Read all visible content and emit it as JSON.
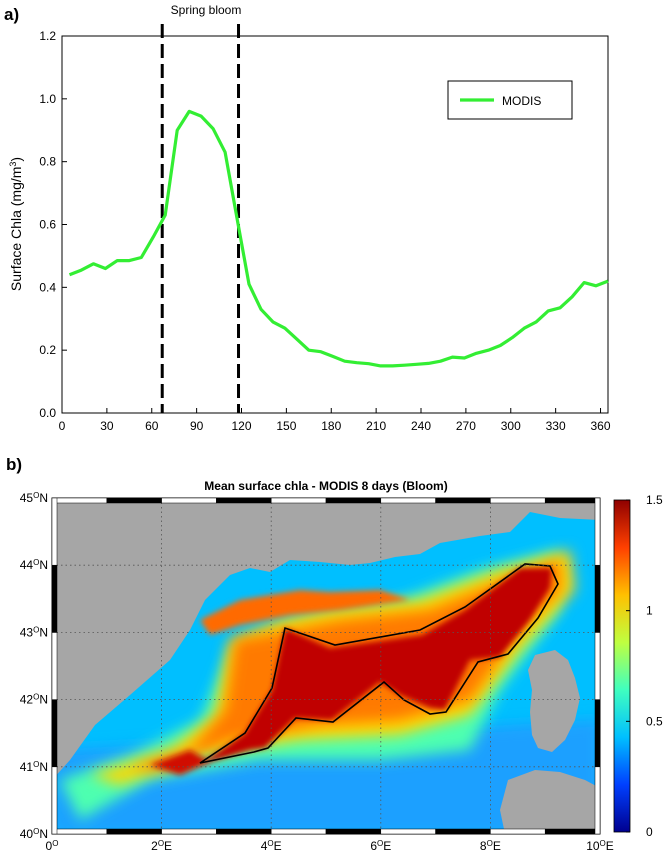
{
  "panel_a_label": "a)",
  "panel_b_label": "b)",
  "chart_data": [
    {
      "type": "line",
      "title": "",
      "xlabel": "",
      "ylabel": "Surface Chla (mg/m",
      "ylabel_sup": "3",
      "ylabel_close": ")",
      "xlim": [
        0,
        365
      ],
      "ylim": [
        0,
        1.2
      ],
      "xticks": [
        "0",
        "30",
        "60",
        "90",
        "120",
        "150",
        "180",
        "210",
        "240",
        "270",
        "300",
        "330",
        "360"
      ],
      "yticks": [
        "0.0",
        "0.2",
        "0.4",
        "0.6",
        "0.8",
        "1.0",
        "1.2"
      ],
      "legend_position": "top-right",
      "series": [
        {
          "name": "MODIS",
          "color": "#33ee33",
          "x": [
            5,
            13,
            21,
            29,
            37,
            45,
            53,
            61,
            69,
            77,
            85,
            93,
            101,
            109,
            117,
            125,
            133,
            141,
            149,
            157,
            165,
            173,
            181,
            189,
            197,
            205,
            213,
            221,
            229,
            237,
            245,
            253,
            261,
            269,
            277,
            285,
            293,
            301,
            309,
            317,
            325,
            333,
            341,
            349,
            357,
            365
          ],
          "y": [
            0.44,
            0.455,
            0.475,
            0.46,
            0.485,
            0.485,
            0.495,
            0.56,
            0.63,
            0.9,
            0.96,
            0.945,
            0.905,
            0.83,
            0.62,
            0.41,
            0.33,
            0.29,
            0.27,
            0.235,
            0.2,
            0.195,
            0.18,
            0.165,
            0.16,
            0.157,
            0.15,
            0.15,
            0.152,
            0.155,
            0.158,
            0.165,
            0.178,
            0.175,
            0.19,
            0.2,
            0.215,
            0.24,
            0.27,
            0.29,
            0.325,
            0.335,
            0.37,
            0.415,
            0.405,
            0.42
          ]
        }
      ],
      "annotations": {
        "spring_bloom_label": "Spring bloom",
        "bloom_start_day": 67,
        "bloom_end_day": 118
      }
    },
    {
      "type": "heatmap",
      "title": "Mean surface chla - MODIS 8 days (Bloom)",
      "x_ticks": [
        "0",
        "2",
        "4",
        "6",
        "8",
        "10"
      ],
      "x_unit_sup": "O",
      "x_suffix": "E",
      "y_ticks": [
        "40",
        "41",
        "42",
        "43",
        "44",
        "45"
      ],
      "y_unit_sup": "O",
      "y_suffix": "N",
      "xlim": [
        0,
        10
      ],
      "ylim": [
        40,
        45
      ],
      "colorbar": {
        "min": 0,
        "max": 1.5,
        "ticks": [
          "0",
          "0.5",
          "1",
          "1.5"
        ],
        "colors": [
          "#00008f",
          "#0040ff",
          "#00c0ff",
          "#40ffbf",
          "#bfff40",
          "#ffc000",
          "#ff4000",
          "#8f0000"
        ]
      },
      "land_color": "#a6a6a6",
      "bloom_region_outline_color": "#000000"
    }
  ]
}
